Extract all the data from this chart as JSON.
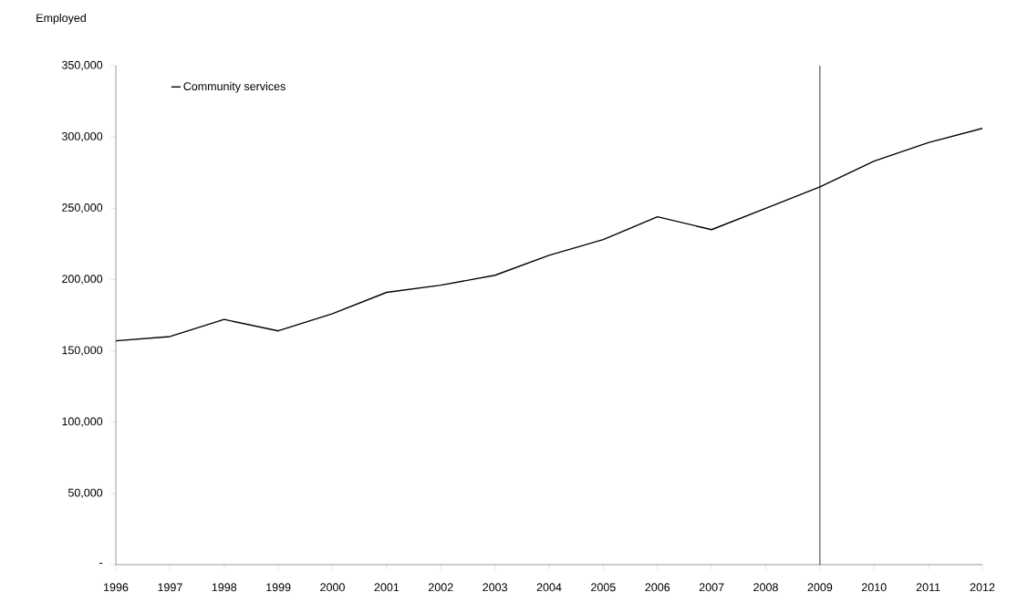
{
  "chart_data": {
    "type": "line",
    "ylabel": "Employed",
    "x": [
      1996,
      1997,
      1998,
      1999,
      2000,
      2001,
      2002,
      2003,
      2004,
      2005,
      2006,
      2007,
      2008,
      2009,
      2010,
      2011,
      2012
    ],
    "series": [
      {
        "name": "Community services",
        "color": "#000000",
        "values": [
          157000,
          160000,
          172000,
          164000,
          176000,
          191000,
          196000,
          203000,
          217000,
          228000,
          244000,
          235000,
          250000,
          265000,
          283000,
          296000,
          306000
        ]
      }
    ],
    "xlim": [
      1996,
      2012
    ],
    "xticks": [
      1996,
      1997,
      1998,
      1999,
      2000,
      2001,
      2002,
      2003,
      2004,
      2005,
      2006,
      2007,
      2008,
      2009,
      2010,
      2011,
      2012
    ],
    "ylim": [
      0,
      350000
    ],
    "yticks": [
      {
        "value": 0,
        "label": "-"
      },
      {
        "value": 50000,
        "label": "50,000"
      },
      {
        "value": 100000,
        "label": "100,000"
      },
      {
        "value": 150000,
        "label": "150,000"
      },
      {
        "value": 200000,
        "label": "200,000"
      },
      {
        "value": 250000,
        "label": "250,000"
      },
      {
        "value": 300000,
        "label": "300,000"
      },
      {
        "value": 350000,
        "label": "350,000"
      }
    ],
    "ref_lines": [
      {
        "axis": "x",
        "value": 2009,
        "color": "#000000"
      }
    ],
    "legend": "top left",
    "grid": false,
    "marker": "none",
    "line_style": "solid"
  }
}
